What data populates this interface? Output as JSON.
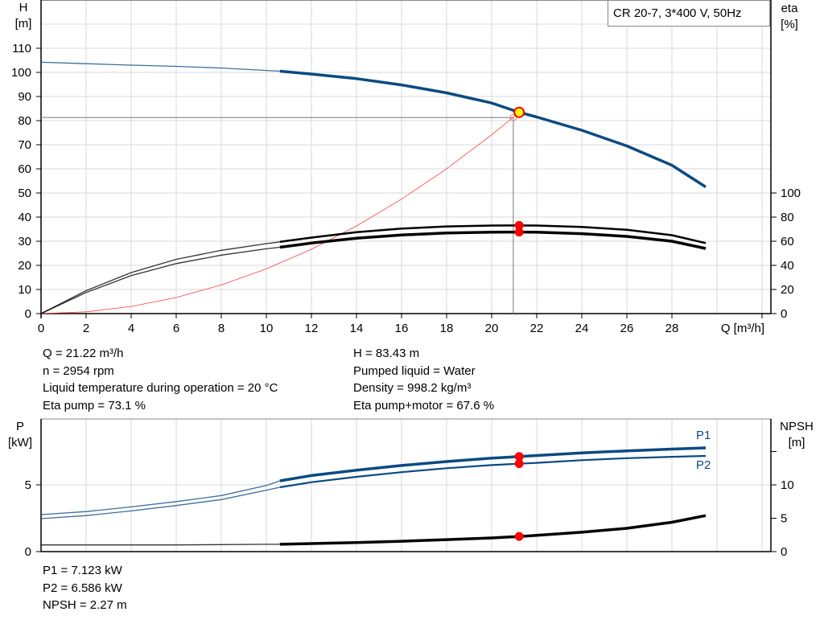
{
  "chart_data": [
    {
      "type": "line",
      "title": "CR 20-7, 3*400 V, 50Hz",
      "x_axis": {
        "label": "Q [m³/h]",
        "range": [
          0,
          32
        ],
        "ticks": [
          0,
          2,
          4,
          6,
          8,
          10,
          12,
          14,
          16,
          18,
          20,
          22,
          24,
          26,
          28
        ]
      },
      "y_left": {
        "label": "H",
        "unit": "[m]",
        "range": [
          0,
          130
        ],
        "ticks": [
          0,
          10,
          20,
          30,
          40,
          50,
          60,
          70,
          80,
          90,
          100,
          110
        ]
      },
      "y_right": {
        "label": "eta",
        "unit": "[%]",
        "range": [
          0,
          100
        ],
        "ticks": [
          0,
          20,
          40,
          60,
          80,
          100
        ]
      },
      "grid": true,
      "series": [
        {
          "id": "head",
          "axis": "left",
          "color": "#0b4a82",
          "x": [
            0,
            2,
            4,
            6,
            8,
            10,
            10.6,
            12,
            14,
            16,
            18,
            20,
            21.22,
            22,
            24,
            26,
            28,
            29.5
          ],
          "y": [
            104.2,
            103.6,
            103.0,
            102.5,
            101.8,
            100.8,
            100.5,
            99.3,
            97.4,
            94.8,
            91.5,
            87.3,
            83.43,
            81.5,
            76.0,
            69.5,
            61.5,
            52.5
          ]
        },
        {
          "id": "eta-pump",
          "axis": "right",
          "color": "#000000",
          "x": [
            0,
            2,
            4,
            6,
            8,
            10,
            10.6,
            12,
            14,
            16,
            18,
            20,
            21.22,
            22,
            24,
            26,
            28,
            29.5
          ],
          "y": [
            0,
            19,
            34,
            45,
            52.5,
            58,
            59.5,
            63,
            67.5,
            70.5,
            72.3,
            73,
            73.1,
            73,
            71.8,
            69.5,
            65,
            58.5
          ]
        },
        {
          "id": "eta-pump-motor",
          "axis": "right",
          "color": "#000000",
          "x": [
            0,
            2,
            4,
            6,
            8,
            10,
            10.6,
            12,
            14,
            16,
            18,
            20,
            21.22,
            22,
            24,
            26,
            28,
            29.5
          ],
          "y": [
            0,
            17.5,
            31.5,
            41.5,
            48.5,
            53.7,
            55,
            58.5,
            62.5,
            65.2,
            66.8,
            67.5,
            67.6,
            67.5,
            66.3,
            64,
            60,
            54
          ]
        },
        {
          "id": "system-curve",
          "axis": "left",
          "color": "#ff4040",
          "x": [
            0,
            2,
            4,
            6,
            8,
            10,
            12,
            14,
            16,
            18,
            20,
            21.22
          ],
          "y": [
            0,
            0.74,
            2.97,
            6.67,
            11.86,
            18.53,
            26.68,
            36.32,
            47.44,
            60.04,
            74.13,
            83.43
          ]
        }
      ],
      "duty_point": {
        "Q": 21.22,
        "H": 83.43,
        "eta_pump": 73.1,
        "eta_pump_motor": 67.6
      },
      "crosshair": {
        "Q": 20.96,
        "H": 81.3
      },
      "colors": {
        "duty_point_fill": "#ffff00",
        "marker": "#ff0000",
        "grid": "#d9d9d9"
      }
    },
    {
      "type": "line",
      "x_axis": {
        "range": [
          0,
          32
        ]
      },
      "y_left": {
        "label": "P",
        "unit": "[kW]",
        "range": [
          0,
          9.9
        ],
        "ticks": [
          0,
          5
        ]
      },
      "y_right": {
        "label": "NPSH",
        "unit": "[m]",
        "range": [
          0,
          19.9
        ],
        "ticks": [
          0,
          5,
          10,
          15
        ],
        "tick_labels": [
          "0",
          "5",
          "10",
          ""
        ]
      },
      "grid": true,
      "series": [
        {
          "id": "P1",
          "name": "P1",
          "axis": "left",
          "color": "#0b4a82",
          "x": [
            0,
            2,
            4,
            6,
            8,
            10,
            10.6,
            12,
            14,
            16,
            18,
            20,
            21.22,
            22,
            24,
            26,
            28,
            29.5
          ],
          "y": [
            2.77,
            3.0,
            3.35,
            3.75,
            4.2,
            4.95,
            5.3,
            5.7,
            6.1,
            6.45,
            6.75,
            7.0,
            7.123,
            7.2,
            7.4,
            7.55,
            7.68,
            7.77
          ]
        },
        {
          "id": "P2",
          "name": "P2",
          "axis": "left",
          "color": "#0b4a82",
          "x": [
            0,
            2,
            4,
            6,
            8,
            10,
            10.6,
            12,
            14,
            16,
            18,
            20,
            21.22,
            22,
            24,
            26,
            28,
            29.5
          ],
          "y": [
            2.47,
            2.7,
            3.05,
            3.45,
            3.9,
            4.6,
            4.82,
            5.2,
            5.6,
            5.95,
            6.25,
            6.48,
            6.586,
            6.65,
            6.85,
            7.0,
            7.1,
            7.17
          ]
        },
        {
          "id": "NPSH",
          "axis": "right",
          "color": "#000000",
          "x": [
            0,
            2,
            4,
            6,
            8,
            10,
            10.6,
            12,
            14,
            16,
            18,
            20,
            21.22,
            22,
            24,
            26,
            28,
            29.5
          ],
          "y": [
            1.0,
            1.0,
            1.0,
            1.0,
            1.05,
            1.1,
            1.1,
            1.2,
            1.35,
            1.55,
            1.8,
            2.05,
            2.27,
            2.45,
            2.9,
            3.5,
            4.4,
            5.4
          ]
        }
      ],
      "duty_point": {
        "Q": 21.22,
        "P1": 7.123,
        "P2": 6.586,
        "NPSH": 2.27
      }
    }
  ],
  "info_top_left": [
    "Q = 21.22 m³/h",
    "n = 2954 rpm",
    "Liquid temperature during operation = 20 °C",
    "Eta pump = 73.1 %"
  ],
  "info_top_right": [
    "H = 83.43 m",
    "Pumped liquid = Water",
    "Density = 998.2 kg/m³",
    "Eta pump+motor = 67.6 %"
  ],
  "info_bottom": [
    "P1 = 7.123 kW",
    "P2 = 6.586 kW",
    "NPSH = 2.27 m"
  ]
}
